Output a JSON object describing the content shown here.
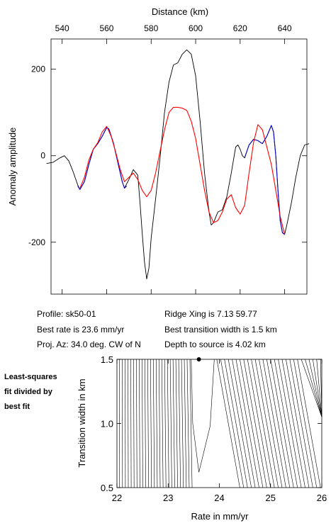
{
  "chart_data": [
    {
      "type": "line",
      "title": "",
      "xlabel": "Distance (km)",
      "ylabel": "Anomaly amplitude",
      "xlim": [
        535,
        650
      ],
      "ylim": [
        -320,
        270
      ],
      "x_ticks": [
        540,
        560,
        580,
        600,
        620,
        640
      ],
      "y_ticks": [
        200,
        0,
        -200
      ],
      "grid": false,
      "series": [
        {
          "color": "#000000",
          "points": [
            [
              533,
              -18
            ],
            [
              536,
              -15
            ],
            [
              539,
              -5
            ],
            [
              541,
              0
            ],
            [
              543,
              -12
            ],
            [
              545,
              -38
            ],
            [
              547,
              -68
            ],
            [
              548,
              -78
            ],
            [
              550,
              -60
            ],
            [
              552,
              -20
            ],
            [
              554,
              15
            ],
            [
              556,
              28
            ],
            [
              558,
              45
            ],
            [
              560,
              65
            ],
            [
              561,
              62
            ],
            [
              563,
              30
            ],
            [
              565,
              -15
            ],
            [
              567,
              -60
            ],
            [
              568,
              -75
            ],
            [
              570,
              -55
            ],
            [
              572,
              -32
            ],
            [
              574,
              -45
            ],
            [
              575,
              -110
            ],
            [
              576,
              -180
            ],
            [
              577,
              -245
            ],
            [
              578,
              -285
            ],
            [
              579,
              -260
            ],
            [
              580,
              -190
            ],
            [
              582,
              -100
            ],
            [
              584,
              -5
            ],
            [
              586,
              100
            ],
            [
              588,
              170
            ],
            [
              590,
              210
            ],
            [
              592,
              215
            ],
            [
              594,
              235
            ],
            [
              596,
              245
            ],
            [
              598,
              235
            ],
            [
              600,
              185
            ],
            [
              602,
              80
            ],
            [
              604,
              -40
            ],
            [
              606,
              -130
            ],
            [
              607,
              -160
            ],
            [
              608,
              -155
            ],
            [
              610,
              -130
            ],
            [
              612,
              -125
            ],
            [
              614,
              -95
            ],
            [
              616,
              -40
            ],
            [
              618,
              20
            ],
            [
              619,
              25
            ],
            [
              620,
              15
            ],
            [
              621,
              0
            ],
            [
              622,
              -5
            ],
            [
              624,
              25
            ],
            [
              626,
              38
            ],
            [
              628,
              35
            ],
            [
              630,
              28
            ],
            [
              632,
              45
            ],
            [
              634,
              70
            ],
            [
              635,
              55
            ],
            [
              636,
              0
            ],
            [
              637,
              -80
            ],
            [
              638,
              -150
            ],
            [
              639,
              -178
            ],
            [
              640,
              -182
            ],
            [
              641,
              -160
            ],
            [
              643,
              -110
            ],
            [
              645,
              -50
            ],
            [
              647,
              0
            ],
            [
              649,
              25
            ],
            [
              651,
              28
            ]
          ]
        },
        {
          "color": "#0000cc",
          "points": [
            [
              547,
              -70
            ],
            [
              548,
              -78
            ],
            [
              550,
              -60
            ],
            [
              552,
              -20
            ],
            [
              554,
              15
            ],
            [
              556,
              28
            ],
            [
              558,
              45
            ],
            [
              560,
              65
            ],
            [
              561,
              62
            ],
            [
              563,
              30
            ],
            [
              565,
              -15
            ],
            [
              567,
              -60
            ],
            [
              568,
              -75
            ],
            [
              569,
              -70
            ]
          ]
        },
        {
          "color": "#0000cc",
          "points": [
            [
              622,
              -5
            ],
            [
              624,
              25
            ],
            [
              626,
              38
            ],
            [
              628,
              35
            ],
            [
              630,
              28
            ],
            [
              632,
              45
            ],
            [
              634,
              70
            ],
            [
              635,
              55
            ],
            [
              636,
              0
            ],
            [
              637,
              -80
            ],
            [
              638,
              -150
            ],
            [
              639,
              -178
            ],
            [
              640,
              -182
            ]
          ]
        },
        {
          "color": "#ff0000",
          "points": [
            [
              548,
              -75
            ],
            [
              550,
              -50
            ],
            [
              552,
              -10
            ],
            [
              554,
              15
            ],
            [
              556,
              30
            ],
            [
              558,
              55
            ],
            [
              560,
              68
            ],
            [
              562,
              45
            ],
            [
              564,
              10
            ],
            [
              566,
              -30
            ],
            [
              568,
              -60
            ],
            [
              570,
              -50
            ],
            [
              572,
              -40
            ],
            [
              574,
              -55
            ],
            [
              576,
              -80
            ],
            [
              578,
              -95
            ],
            [
              580,
              -80
            ],
            [
              582,
              -40
            ],
            [
              584,
              10
            ],
            [
              586,
              60
            ],
            [
              588,
              100
            ],
            [
              590,
              112
            ],
            [
              592,
              112
            ],
            [
              594,
              110
            ],
            [
              596,
              105
            ],
            [
              598,
              80
            ],
            [
              600,
              40
            ],
            [
              602,
              -20
            ],
            [
              604,
              -80
            ],
            [
              606,
              -130
            ],
            [
              608,
              -155
            ],
            [
              610,
              -150
            ],
            [
              612,
              -130
            ],
            [
              614,
              -100
            ],
            [
              616,
              -90
            ],
            [
              618,
              -120
            ],
            [
              620,
              -135
            ],
            [
              622,
              -115
            ],
            [
              624,
              -40
            ],
            [
              626,
              30
            ],
            [
              628,
              72
            ],
            [
              630,
              60
            ],
            [
              632,
              20
            ],
            [
              634,
              -20
            ],
            [
              636,
              -80
            ],
            [
              638,
              -140
            ],
            [
              640,
              -182
            ]
          ]
        }
      ]
    },
    {
      "type": "contour",
      "title": "",
      "xlabel": "Rate in mm/yr",
      "ylabel": "Transition width in km",
      "xlim": [
        22,
        26
      ],
      "ylim": [
        0.5,
        1.5
      ],
      "x_ticks": [
        22,
        23,
        24,
        25,
        26
      ],
      "y_ticks": [
        0.5,
        1.0,
        1.5
      ],
      "y_tick_labels": [
        "0.5",
        "1.0",
        "1.5"
      ],
      "best_fit_marker": {
        "rate": 23.6,
        "width": 1.5
      }
    }
  ],
  "info": {
    "profile": "Profile: sk50-01",
    "best_rate": "Best rate is 23.6 mm/yr",
    "proj_az": "Proj. Az: 34.0 deg. CW of N",
    "ridge_xing": "Ridge Xing is 7.13 59.77",
    "best_width": "Best transition width is 1.5 km",
    "depth": "Depth to source is   4.02 km"
  },
  "contour_note": [
    "Least-squares",
    "fit divided by",
    "best fit"
  ]
}
